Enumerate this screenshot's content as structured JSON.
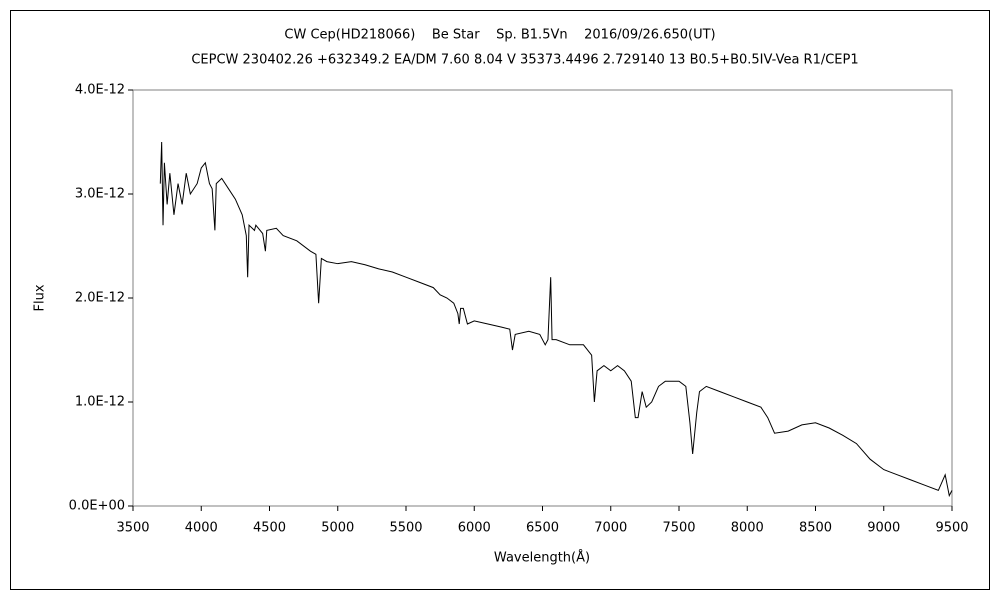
{
  "chart_data": {
    "type": "line",
    "title": "CW Cep(HD218066)    Be Star    Sp. B1.5Vn    2016/09/26.650(UT)",
    "subtitle": "CEPCW 230402.26 +632349.2 EA/DM 7.60 8.04 V 35373.4496 2.729140 13 B0.5+B0.5IV-Vea R1/CEP1",
    "x_label": "Wavelength(Å)",
    "y_label": "Flux",
    "xlim": [
      3500,
      9500
    ],
    "xticks": [
      3500,
      4000,
      4500,
      5000,
      5500,
      6000,
      6500,
      7000,
      7500,
      8000,
      8500,
      9000,
      9500
    ],
    "ylim": [
      0,
      4e-12
    ],
    "yticks": [
      {
        "value": 0,
        "label": "0.0E+00"
      },
      {
        "value": 1e-12,
        "label": "1.0E-12"
      },
      {
        "value": 2e-12,
        "label": "2.0E-12"
      },
      {
        "value": 3e-12,
        "label": "3.0E-12"
      },
      {
        "value": 4e-12,
        "label": "4.0E-12"
      }
    ],
    "grid": false,
    "x": [
      3700,
      3710,
      3720,
      3730,
      3750,
      3770,
      3800,
      3830,
      3860,
      3890,
      3920,
      3970,
      4000,
      4030,
      4060,
      4080,
      4100,
      4110,
      4150,
      4200,
      4250,
      4300,
      4330,
      4340,
      4350,
      4390,
      4400,
      4450,
      4470,
      4480,
      4550,
      4600,
      4700,
      4800,
      4840,
      4860,
      4880,
      4920,
      5000,
      5100,
      5200,
      5300,
      5400,
      5500,
      5600,
      5700,
      5750,
      5800,
      5850,
      5880,
      5890,
      5900,
      5920,
      5950,
      6000,
      6100,
      6200,
      6260,
      6280,
      6300,
      6400,
      6480,
      6520,
      6540,
      6560,
      6570,
      6600,
      6700,
      6800,
      6860,
      6880,
      6900,
      6950,
      7000,
      7050,
      7100,
      7150,
      7180,
      7200,
      7230,
      7260,
      7300,
      7350,
      7400,
      7500,
      7550,
      7580,
      7600,
      7630,
      7650,
      7700,
      7800,
      7900,
      8000,
      8100,
      8150,
      8200,
      8300,
      8400,
      8500,
      8600,
      8700,
      8800,
      8900,
      9000,
      9100,
      9200,
      9300,
      9400,
      9450,
      9480,
      9500
    ],
    "series": [
      {
        "name": "Flux",
        "color": "#000000",
        "values": [
          3.1e-12,
          3.5e-12,
          2.7e-12,
          3.3e-12,
          2.9e-12,
          3.2e-12,
          2.8e-12,
          3.1e-12,
          2.9e-12,
          3.2e-12,
          3e-12,
          3.1e-12,
          3.25e-12,
          3.3e-12,
          3.1e-12,
          3.05e-12,
          2.65e-12,
          3.1e-12,
          3.15e-12,
          3.05e-12,
          2.95e-12,
          2.8e-12,
          2.6e-12,
          2.2e-12,
          2.7e-12,
          2.65e-12,
          2.7e-12,
          2.62e-12,
          2.45e-12,
          2.65e-12,
          2.67e-12,
          2.6e-12,
          2.55e-12,
          2.45e-12,
          2.42e-12,
          1.95e-12,
          2.38e-12,
          2.35e-12,
          2.33e-12,
          2.35e-12,
          2.32e-12,
          2.28e-12,
          2.25e-12,
          2.2e-12,
          2.15e-12,
          2.1e-12,
          2.03e-12,
          2e-12,
          1.95e-12,
          1.85e-12,
          1.75e-12,
          1.9e-12,
          1.9e-12,
          1.75e-12,
          1.78e-12,
          1.75e-12,
          1.72e-12,
          1.7e-12,
          1.5e-12,
          1.65e-12,
          1.68e-12,
          1.65e-12,
          1.55e-12,
          1.6e-12,
          2.2e-12,
          1.6e-12,
          1.6e-12,
          1.55e-12,
          1.55e-12,
          1.45e-12,
          1e-12,
          1.3e-12,
          1.35e-12,
          1.3e-12,
          1.35e-12,
          1.3e-12,
          1.2e-12,
          8.5e-13,
          8.5e-13,
          1.1e-12,
          9.5e-13,
          1e-12,
          1.15e-12,
          1.2e-12,
          1.2e-12,
          1.15e-12,
          8e-13,
          5e-13,
          9e-13,
          1.1e-12,
          1.15e-12,
          1.1e-12,
          1.05e-12,
          1e-12,
          9.5e-13,
          8.5e-13,
          7e-13,
          7.2e-13,
          7.8e-13,
          8e-13,
          7.5e-13,
          6.8e-13,
          6e-13,
          4.5e-13,
          3.5e-13,
          3e-13,
          2.5e-13,
          2e-13,
          1.5e-13,
          3e-13,
          1e-13,
          1.5e-13
        ]
      }
    ]
  }
}
